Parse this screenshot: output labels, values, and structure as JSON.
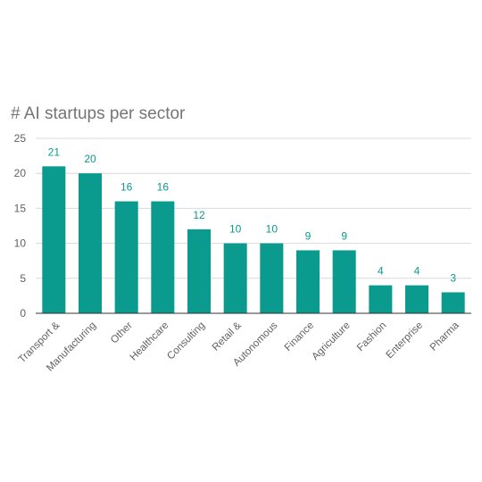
{
  "chart_data": {
    "type": "bar",
    "title": "# AI startups per sector",
    "xlabel": "",
    "ylabel": "",
    "categories": [
      "Transport &",
      "Manufacturing",
      "Other",
      "Healthcare",
      "Consulting",
      "Retail &",
      "Autonomous",
      "Finance",
      "Agriculture",
      "Fashion",
      "Enterprise",
      "Pharma"
    ],
    "values": [
      21,
      20,
      16,
      16,
      12,
      10,
      10,
      9,
      9,
      4,
      4,
      3
    ],
    "ylim": [
      0,
      25
    ],
    "yticks": [
      0,
      5,
      10,
      15,
      20,
      25
    ],
    "grid": true,
    "data_labels": true,
    "legend": "none",
    "colors": {
      "bar": "#0a9a8e",
      "data_label": "#0a9a8e",
      "grid": "#d9d9d9",
      "baseline": "#333333"
    }
  }
}
